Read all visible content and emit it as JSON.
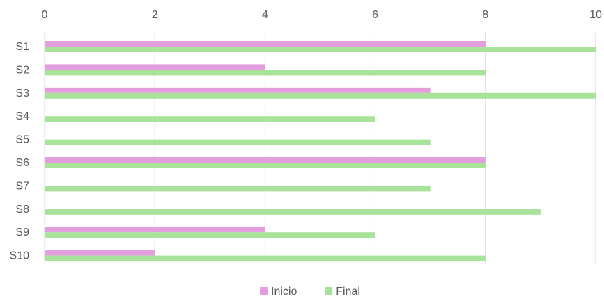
{
  "chart_data": {
    "type": "bar",
    "orientation": "horizontal",
    "categories": [
      "S1",
      "S2",
      "S3",
      "S4",
      "S5",
      "S6",
      "S7",
      "S8",
      "S9",
      "S10"
    ],
    "series": [
      {
        "name": "Inicio",
        "color": "#E59EDD",
        "values": [
          8,
          4,
          7,
          0,
          0,
          8,
          0,
          0,
          4,
          2
        ]
      },
      {
        "name": "Final",
        "color": "#A9E29B",
        "values": [
          10,
          8,
          10,
          6,
          7,
          8,
          7,
          9,
          6,
          8
        ]
      }
    ],
    "xlim": [
      0,
      10
    ],
    "xticks": [
      0,
      2,
      4,
      6,
      8,
      10
    ],
    "x_axis_position": "top",
    "grid": true,
    "legend": "bottom"
  }
}
